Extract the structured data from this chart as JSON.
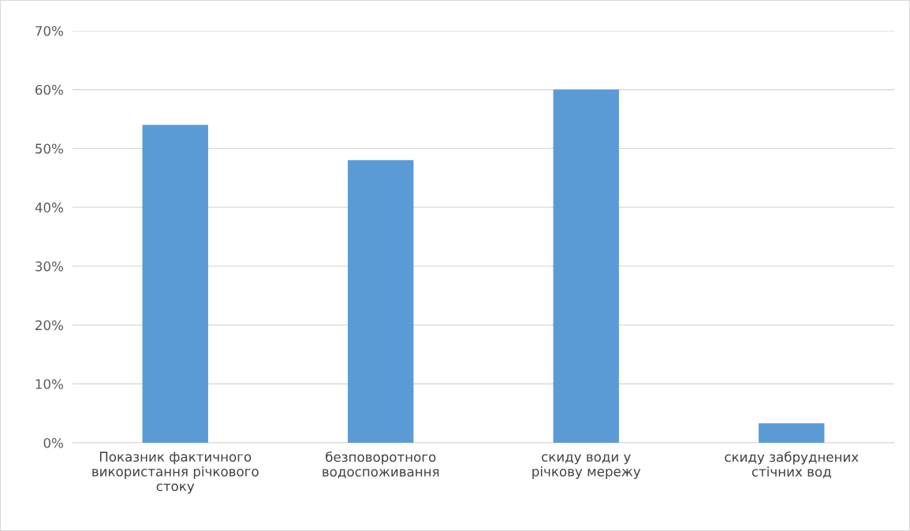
{
  "chart_data": {
    "type": "bar",
    "categories": [
      "Показник фактичного\nвикористання річкового\nстоку",
      "безповоротного\nводоспоживання",
      "скиду води у\nрічкову мережу",
      "скиду забруднених\nстічних вод"
    ],
    "values": [
      54,
      48,
      60,
      3.3
    ],
    "color": "#5b9bd5",
    "ylim": [
      0,
      70
    ],
    "yticks": [
      {
        "value": 0,
        "label": "0%"
      },
      {
        "value": 10,
        "label": "10%"
      },
      {
        "value": 20,
        "label": "20%"
      },
      {
        "value": 30,
        "label": "30%"
      },
      {
        "value": 40,
        "label": "40%"
      },
      {
        "value": 50,
        "label": "50%"
      },
      {
        "value": 60,
        "label": "60%"
      },
      {
        "value": 70,
        "label": "70%"
      }
    ],
    "grid": "y"
  }
}
